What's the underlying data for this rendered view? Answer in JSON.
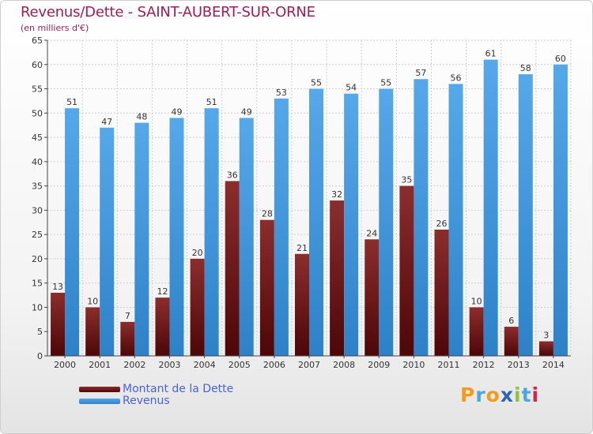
{
  "header": {
    "title": "Revenus/Dette - SAINT-AUBERT-SUR-ORNE",
    "subtitle": "(en milliers d'€)"
  },
  "colors": {
    "title": "#a01d52",
    "dette": "#7a1a1a",
    "revenus": "#3b93d9",
    "legend_text": "#4a62d8"
  },
  "legend": {
    "dette_label": "Montant de la Dette",
    "revenus_label": "Revenus"
  },
  "logo": {
    "letters": [
      "P",
      "r",
      "o",
      "x",
      "i",
      "t",
      "i"
    ],
    "colors": [
      "#f39c1a",
      "#49a8e0",
      "#f39c1a",
      "#2b63b8",
      "#8fc43a",
      "#49a8e0",
      "#d6244e"
    ]
  },
  "chart_data": {
    "type": "bar",
    "title": "Revenus/Dette - SAINT-AUBERT-SUR-ORNE",
    "subtitle": "(en milliers d'€)",
    "categories": [
      "2000",
      "2001",
      "2002",
      "2003",
      "2004",
      "2005",
      "2006",
      "2007",
      "2008",
      "2009",
      "2010",
      "2011",
      "2012",
      "2013",
      "2014"
    ],
    "series": [
      {
        "name": "Montant de la Dette",
        "values": [
          13,
          10,
          7,
          12,
          20,
          36,
          28,
          21,
          32,
          24,
          35,
          26,
          10,
          6,
          3
        ]
      },
      {
        "name": "Revenus",
        "values": [
          51,
          47,
          48,
          49,
          51,
          49,
          53,
          55,
          54,
          55,
          57,
          56,
          61,
          58,
          60
        ]
      }
    ],
    "ylim": [
      0,
      65
    ],
    "yticks": [
      0,
      5,
      10,
      15,
      20,
      25,
      30,
      35,
      40,
      45,
      50,
      55,
      60,
      65
    ],
    "grid": true,
    "legend_position": "bottom-left"
  }
}
